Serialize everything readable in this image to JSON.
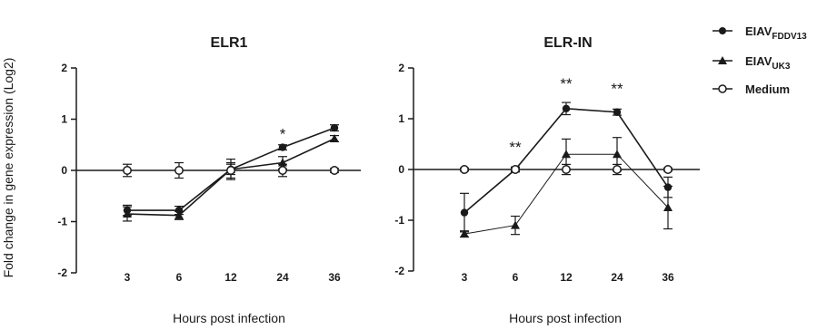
{
  "figure": {
    "ylabel": "Fold change in gene expression (Log2)"
  },
  "legend": [
    {
      "main": "EIAV",
      "sub": "FDDV13",
      "marker": "filled-circle"
    },
    {
      "main": "EIAV",
      "sub": "UK3",
      "marker": "filled-triangle"
    },
    {
      "main": "Medium",
      "sub": "",
      "marker": "open-circle"
    }
  ],
  "chart_data": [
    {
      "type": "line",
      "title": "ELR1",
      "xlabel": "Hours post infection",
      "ylabel": "Fold change in gene expression (Log2)",
      "categories": [
        "3",
        "6",
        "12",
        "24",
        "36"
      ],
      "ylim": [
        -2,
        2
      ],
      "yticks": [
        -2,
        -1,
        0,
        1,
        2
      ],
      "series": [
        {
          "name": "EIAVFDDV13",
          "marker": "filled-circle",
          "values": [
            -0.78,
            -0.78,
            0.02,
            0.45,
            0.83
          ],
          "errors": [
            0.1,
            0.08,
            0.1,
            0.05,
            0.06
          ]
        },
        {
          "name": "EIAVUK3",
          "marker": "filled-triangle",
          "values": [
            -0.85,
            -0.88,
            0.02,
            0.15,
            0.62
          ],
          "errors": [
            0.14,
            0.08,
            0.2,
            0.12,
            0.06
          ]
        },
        {
          "name": "Medium",
          "marker": "open-circle",
          "values": [
            0,
            0,
            0,
            0,
            0
          ],
          "errors": [
            0.12,
            0.15,
            0.15,
            0.12,
            0.04
          ]
        }
      ],
      "annotations": [
        {
          "category": "24",
          "text": "*",
          "y": 0.72
        }
      ]
    },
    {
      "type": "line",
      "title": "ELR-IN",
      "xlabel": "Hours post infection",
      "ylabel": "",
      "categories": [
        "3",
        "6",
        "12",
        "24",
        "36"
      ],
      "ylim": [
        -2,
        2
      ],
      "yticks": [
        -2,
        -1,
        0,
        1,
        2
      ],
      "series": [
        {
          "name": "EIAVFDDV13",
          "marker": "filled-circle",
          "values": [
            -0.85,
            0.0,
            1.2,
            1.13,
            -0.35
          ],
          "errors": [
            0.38,
            0.05,
            0.12,
            0.06,
            0.2
          ]
        },
        {
          "name": "EIAVUK3",
          "marker": "filled-triangle",
          "values": [
            -1.27,
            -1.1,
            0.3,
            0.3,
            -0.75
          ],
          "errors": [
            0.06,
            0.18,
            0.3,
            0.33,
            0.42
          ]
        },
        {
          "name": "Medium",
          "marker": "open-circle",
          "values": [
            0,
            0,
            0,
            0,
            0
          ],
          "errors": [
            0.03,
            0.03,
            0.1,
            0.1,
            0.03
          ]
        }
      ],
      "annotations": [
        {
          "category": "6",
          "text": "**",
          "y": 0.45
        },
        {
          "category": "12",
          "text": "**",
          "y": 1.7
        },
        {
          "category": "24",
          "text": "**",
          "y": 1.6
        }
      ]
    }
  ]
}
